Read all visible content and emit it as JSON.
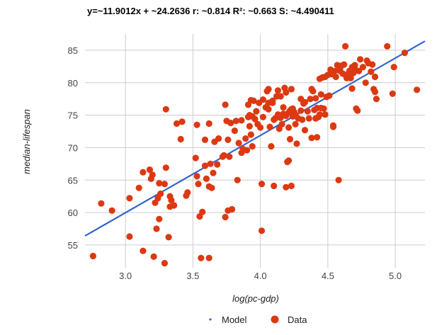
{
  "chart_data": {
    "type": "scatter",
    "title": "y=~11.9012x +  ~24.2636    r:  ~0.814    R²:  ~0.663    S:  ~4.490411",
    "xlabel": "log(pc-gdp)",
    "ylabel": "median-lifespan",
    "xlim": [
      2.7,
      5.22
    ],
    "ylim": [
      51.5,
      87.5
    ],
    "x_ticks": [
      "3.0",
      "3.5",
      "4.0",
      "4.5",
      "5.0"
    ],
    "y_ticks": [
      "55",
      "60",
      "65",
      "70",
      "75",
      "80",
      "85"
    ],
    "grid": true,
    "legend_position": "bottom",
    "series": [
      {
        "name": "Model",
        "kind": "line",
        "color": "#3366cc",
        "x": [
          2.7,
          5.22
        ],
        "y": [
          56.4,
          86.4
        ]
      },
      {
        "name": "Data",
        "kind": "scatter",
        "color": "#dc3912",
        "points": [
          [
            2.76,
            53.3
          ],
          [
            2.82,
            61.4
          ],
          [
            2.9,
            60.3
          ],
          [
            3.03,
            56.3
          ],
          [
            3.03,
            62.2
          ],
          [
            3.1,
            63.8
          ],
          [
            3.13,
            54.1
          ],
          [
            3.13,
            66.2
          ],
          [
            3.18,
            66.6
          ],
          [
            3.19,
            65.2
          ],
          [
            3.2,
            65.8
          ],
          [
            3.21,
            53.2
          ],
          [
            3.22,
            61.5
          ],
          [
            3.23,
            57.5
          ],
          [
            3.24,
            62.2
          ],
          [
            3.25,
            59.0
          ],
          [
            3.25,
            64.5
          ],
          [
            3.26,
            62.9
          ],
          [
            3.29,
            52.2
          ],
          [
            3.29,
            64.4
          ],
          [
            3.3,
            66.9
          ],
          [
            3.3,
            75.9
          ],
          [
            3.32,
            56.2
          ],
          [
            3.33,
            60.9
          ],
          [
            3.33,
            62.5
          ],
          [
            3.34,
            61.9
          ],
          [
            3.36,
            61.1
          ],
          [
            3.38,
            73.7
          ],
          [
            3.41,
            71.3
          ],
          [
            3.42,
            74.0
          ],
          [
            3.45,
            62.6
          ],
          [
            3.46,
            63.1
          ],
          [
            3.52,
            68.4
          ],
          [
            3.53,
            65.6
          ],
          [
            3.53,
            73.5
          ],
          [
            3.54,
            64.4
          ],
          [
            3.55,
            59.4
          ],
          [
            3.56,
            53.0
          ],
          [
            3.57,
            60.1
          ],
          [
            3.59,
            67.2
          ],
          [
            3.59,
            71.2
          ],
          [
            3.6,
            65.2
          ],
          [
            3.62,
            53.0
          ],
          [
            3.62,
            64.0
          ],
          [
            3.62,
            73.7
          ],
          [
            3.63,
            67.5
          ],
          [
            3.64,
            63.8
          ],
          [
            3.65,
            66.1
          ],
          [
            3.66,
            70.9
          ],
          [
            3.68,
            67.4
          ],
          [
            3.69,
            71.4
          ],
          [
            3.72,
            68.6
          ],
          [
            3.73,
            68.8
          ],
          [
            3.74,
            59.3
          ],
          [
            3.74,
            76.6
          ],
          [
            3.75,
            74.1
          ],
          [
            3.76,
            60.3
          ],
          [
            3.76,
            71.2
          ],
          [
            3.77,
            68.6
          ],
          [
            3.78,
            73.8
          ],
          [
            3.79,
            60.5
          ],
          [
            3.81,
            72.6
          ],
          [
            3.82,
            74.1
          ],
          [
            3.83,
            65.0
          ],
          [
            3.84,
            70.7
          ],
          [
            3.86,
            69.2
          ],
          [
            3.86,
            74.2
          ],
          [
            3.87,
            69.8
          ],
          [
            3.89,
            71.4
          ],
          [
            3.9,
            69.6
          ],
          [
            3.91,
            74.7
          ],
          [
            3.91,
            76.6
          ],
          [
            3.92,
            73.3
          ],
          [
            3.92,
            75.0
          ],
          [
            3.93,
            77.3
          ],
          [
            3.93,
            72.0
          ],
          [
            3.94,
            74.8
          ],
          [
            3.94,
            70.2
          ],
          [
            3.95,
            77.2
          ],
          [
            3.96,
            74.4
          ],
          [
            3.97,
            75.6
          ],
          [
            3.98,
            73.6
          ],
          [
            3.99,
            76.9
          ],
          [
            4.0,
            73.1
          ],
          [
            4.01,
            57.2
          ],
          [
            4.01,
            64.4
          ],
          [
            4.02,
            74.7
          ],
          [
            4.02,
            77.4
          ],
          [
            4.04,
            76.2
          ],
          [
            4.05,
            78.7
          ],
          [
            4.06,
            75.9
          ],
          [
            4.06,
            76.9
          ],
          [
            4.06,
            79.0
          ],
          [
            4.07,
            73.2
          ],
          [
            4.08,
            70.2
          ],
          [
            4.09,
            77.2
          ],
          [
            4.09,
            76.9
          ],
          [
            4.1,
            74.3
          ],
          [
            4.1,
            64.1
          ],
          [
            4.11,
            74.5
          ],
          [
            4.12,
            77.9
          ],
          [
            4.13,
            75.1
          ],
          [
            4.13,
            78.8
          ],
          [
            4.14,
            72.9
          ],
          [
            4.15,
            74.6
          ],
          [
            4.15,
            77.9
          ],
          [
            4.16,
            73.6
          ],
          [
            4.17,
            76.2
          ],
          [
            4.17,
            75.2
          ],
          [
            4.18,
            79.2
          ],
          [
            4.19,
            63.9
          ],
          [
            4.19,
            74.9
          ],
          [
            4.19,
            78.5
          ],
          [
            4.2,
            67.8
          ],
          [
            4.21,
            75.4
          ],
          [
            4.21,
            73.1
          ],
          [
            4.21,
            68.0
          ],
          [
            4.22,
            71.3
          ],
          [
            4.22,
            75.7
          ],
          [
            4.23,
            75.9
          ],
          [
            4.23,
            79.0
          ],
          [
            4.23,
            64.1
          ],
          [
            4.24,
            74.8
          ],
          [
            4.24,
            76.0
          ],
          [
            4.25,
            75.5
          ],
          [
            4.26,
            73.6
          ],
          [
            4.26,
            75.1
          ],
          [
            4.27,
            70.6
          ],
          [
            4.28,
            74.5
          ],
          [
            4.3,
            77.5
          ],
          [
            4.3,
            75.7
          ],
          [
            4.31,
            74.3
          ],
          [
            4.32,
            76.8
          ],
          [
            4.33,
            77.0
          ],
          [
            4.33,
            72.7
          ],
          [
            4.35,
            75.6
          ],
          [
            4.36,
            74.5
          ],
          [
            4.37,
            77.5
          ],
          [
            4.38,
            79.0
          ],
          [
            4.38,
            71.5
          ],
          [
            4.39,
            78.7
          ],
          [
            4.4,
            75.8
          ],
          [
            4.41,
            77.6
          ],
          [
            4.41,
            74.5
          ],
          [
            4.42,
            71.6
          ],
          [
            4.42,
            76.1
          ],
          [
            4.43,
            74.7
          ],
          [
            4.44,
            80.6
          ],
          [
            4.44,
            75.1
          ],
          [
            4.45,
            76.1
          ],
          [
            4.45,
            78.2
          ],
          [
            4.46,
            80.8
          ],
          [
            4.47,
            76.0
          ],
          [
            4.48,
            80.9
          ],
          [
            4.48,
            75.1
          ],
          [
            4.49,
            77.8
          ],
          [
            4.5,
            81.2
          ],
          [
            4.51,
            78.0
          ],
          [
            4.52,
            82.0
          ],
          [
            4.53,
            81.3
          ],
          [
            4.54,
            73.4
          ],
          [
            4.54,
            73.2
          ],
          [
            4.55,
            81.8
          ],
          [
            4.56,
            80.9
          ],
          [
            4.57,
            82.7
          ],
          [
            4.58,
            65.0
          ],
          [
            4.59,
            81.8
          ],
          [
            4.59,
            82.2
          ],
          [
            4.6,
            82.6
          ],
          [
            4.61,
            81.4
          ],
          [
            4.62,
            82.8
          ],
          [
            4.63,
            81.2
          ],
          [
            4.63,
            85.6
          ],
          [
            4.64,
            80.7
          ],
          [
            4.65,
            81.0
          ],
          [
            4.66,
            81.8
          ],
          [
            4.67,
            80.7
          ],
          [
            4.68,
            82.4
          ],
          [
            4.68,
            79.1
          ],
          [
            4.69,
            81.5
          ],
          [
            4.7,
            82.1
          ],
          [
            4.7,
            82.7
          ],
          [
            4.71,
            81.9
          ],
          [
            4.71,
            76.0
          ],
          [
            4.72,
            75.7
          ],
          [
            4.73,
            81.8
          ],
          [
            4.74,
            83.6
          ],
          [
            4.76,
            82.4
          ],
          [
            4.78,
            80.0
          ],
          [
            4.79,
            83.4
          ],
          [
            4.8,
            83.0
          ],
          [
            4.82,
            81.7
          ],
          [
            4.83,
            82.8
          ],
          [
            4.84,
            79.0
          ],
          [
            4.85,
            80.9
          ],
          [
            4.85,
            78.6
          ],
          [
            4.86,
            77.5
          ],
          [
            4.94,
            85.6
          ],
          [
            4.98,
            78.3
          ],
          [
            4.99,
            82.4
          ],
          [
            5.07,
            84.6
          ],
          [
            5.16,
            78.9
          ]
        ]
      }
    ]
  }
}
